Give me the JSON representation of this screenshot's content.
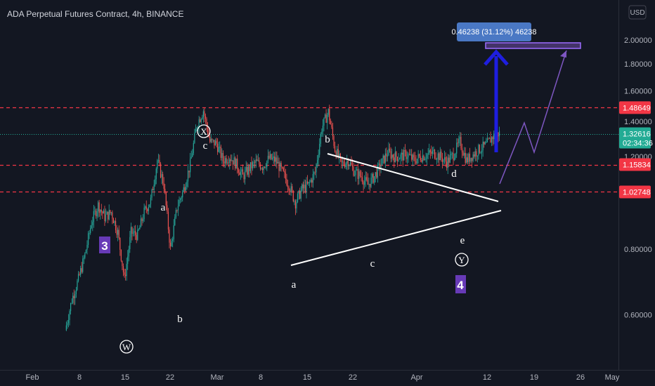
{
  "title": "ADA Perpetual Futures Contract, 4h, BINANCE",
  "currency_button": "USD",
  "colors": {
    "background": "#131722",
    "up": "#26a69a",
    "down": "#ef5350",
    "level_line": "#f23645",
    "current_tag": "#22ab94",
    "pattern_line": "#ffffff",
    "projection": "#7e57c2",
    "arrow": "#1e1ee0",
    "wave_box": "#673ab7",
    "measure_box": "#4a78c4"
  },
  "measure_label": "0.46238 (31.12%) 46238",
  "chart_data": {
    "type": "candlestick",
    "title": "ADA Perpetual Futures Contract, 4h, BINANCE",
    "x_ticks": [
      "Feb",
      "8",
      "15",
      "22",
      "Mar",
      "8",
      "15",
      "22",
      "Apr",
      "12",
      "19",
      "26",
      "May"
    ],
    "y_ticks": [
      "2.00000",
      "1.80000",
      "1.60000",
      "1.40000",
      "1.20000",
      "0.80000",
      "0.60000"
    ],
    "ylim": [
      0.55,
      2.12
    ],
    "y_scale": "log",
    "grid": false,
    "current_price": "1.32616",
    "countdown": "02:34:36",
    "horizontal_levels": [
      "1.48649",
      "1.15834",
      "1.02748"
    ],
    "path": [
      [
        "Feb 6",
        0.56
      ],
      [
        "Feb 7",
        0.64
      ],
      [
        "Feb 8",
        0.7
      ],
      [
        "Feb 9",
        0.78
      ],
      [
        "Feb 10",
        0.9
      ],
      [
        "Feb 11",
        0.97
      ],
      [
        "Feb 12",
        0.92
      ],
      [
        "Feb 13",
        0.94
      ],
      [
        "Feb 14",
        0.86
      ],
      [
        "Feb 15",
        0.7
      ],
      [
        "Feb 16",
        0.86
      ],
      [
        "Feb 17",
        0.85
      ],
      [
        "Feb 18",
        0.94
      ],
      [
        "Feb 19",
        0.99
      ],
      [
        "Feb 20",
        1.18
      ],
      [
        "Feb 21",
        1.06
      ],
      [
        "Feb 22",
        0.8
      ],
      [
        "Feb 23",
        0.96
      ],
      [
        "Feb 24",
        1.04
      ],
      [
        "Feb 25",
        1.16
      ],
      [
        "Feb 26",
        1.38
      ],
      [
        "Feb 27",
        1.47
      ],
      [
        "Feb 28",
        1.28
      ],
      [
        "Mar 1",
        1.27
      ],
      [
        "Mar 2",
        1.18
      ],
      [
        "Mar 3",
        1.2
      ],
      [
        "Mar 4",
        1.16
      ],
      [
        "Mar 5",
        1.1
      ],
      [
        "Mar 6",
        1.14
      ],
      [
        "Mar 7",
        1.17
      ],
      [
        "Mar 8",
        1.15
      ],
      [
        "Mar 9",
        1.19
      ],
      [
        "Mar 10",
        1.18
      ],
      [
        "Mar 11",
        1.12
      ],
      [
        "Mar 12",
        1.06
      ],
      [
        "Mar 13",
        0.98
      ],
      [
        "Mar 14",
        1.04
      ],
      [
        "Mar 15",
        1.06
      ],
      [
        "Mar 16",
        1.12
      ],
      [
        "Mar 17",
        1.36
      ],
      [
        "Mar 18",
        1.46
      ],
      [
        "Mar 19",
        1.24
      ],
      [
        "Mar 20",
        1.16
      ],
      [
        "Mar 21",
        1.18
      ],
      [
        "Mar 22",
        1.12
      ],
      [
        "Mar 23",
        1.1
      ],
      [
        "Mar 24",
        1.06
      ],
      [
        "Mar 25",
        1.1
      ],
      [
        "Mar 26",
        1.16
      ],
      [
        "Mar 27",
        1.22
      ],
      [
        "Mar 28",
        1.2
      ],
      [
        "Mar 29",
        1.2
      ],
      [
        "Mar 30",
        1.21
      ],
      [
        "Mar 31",
        1.18
      ],
      [
        "Apr 1",
        1.2
      ],
      [
        "Apr 2",
        1.21
      ],
      [
        "Apr 3",
        1.22
      ],
      [
        "Apr 4",
        1.2
      ],
      [
        "Apr 5",
        1.17
      ],
      [
        "Apr 6",
        1.21
      ],
      [
        "Apr 7",
        1.28
      ],
      [
        "Apr 8",
        1.18
      ],
      [
        "Apr 9",
        1.21
      ],
      [
        "Apr 10",
        1.24
      ],
      [
        "Apr 11",
        1.26
      ],
      [
        "Apr 12",
        1.31
      ],
      [
        "Apr 13",
        1.33
      ]
    ],
    "annotations": {
      "wave_labels": [
        "a",
        "b",
        "c",
        "b",
        "a",
        "c",
        "d",
        "e",
        "a",
        "b"
      ],
      "circled_labels": [
        "X",
        "W",
        "Y"
      ],
      "wave_numbers": [
        "3",
        "4"
      ]
    }
  }
}
